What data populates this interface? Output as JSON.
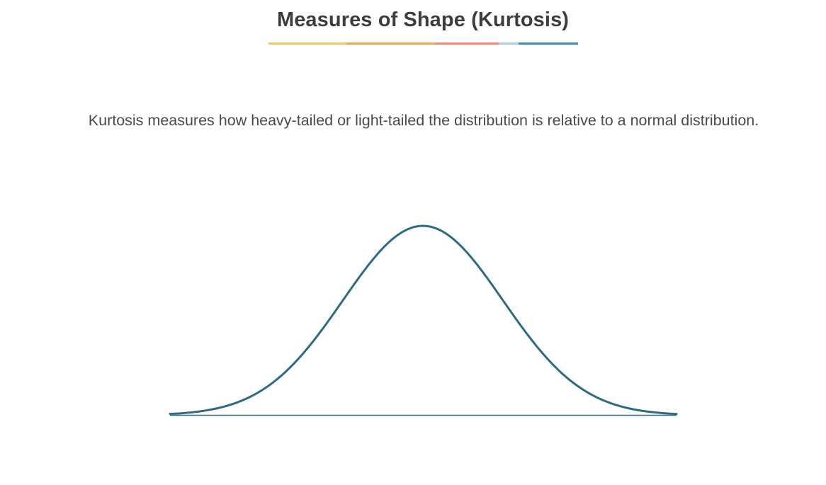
{
  "slide": {
    "title": "Measures of Shape (Kurtosis)",
    "description": "Kurtosis measures how heavy-tailed or light-tailed the distribution is relative to a normal distribution."
  },
  "colors": {
    "title_text": "#3d3d3d",
    "body_text": "#4a4a4a",
    "curve": "#2d6b85",
    "baseline": "#2d6b85",
    "underline_segments": [
      "#f4c46a",
      "#f2a65a",
      "#ef8a6a",
      "#a9cde8",
      "#3c8ac4"
    ]
  },
  "diagram": {
    "type": "normal-distribution-curve",
    "curve_icon": "bell-curve-icon"
  }
}
